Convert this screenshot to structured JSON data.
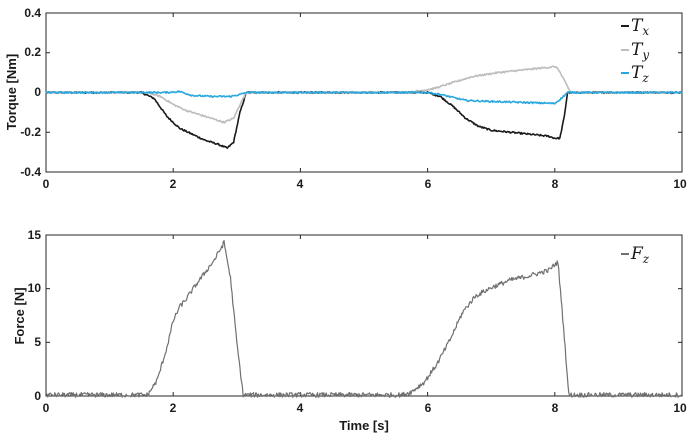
{
  "chart_data": [
    {
      "type": "line",
      "ylabel": "Torque [Nm]",
      "xlabel": "",
      "xlim": [
        0,
        10
      ],
      "ylim": [
        -0.4,
        0.4
      ],
      "xticks": [
        "0",
        "2",
        "4",
        "6",
        "8",
        "10"
      ],
      "yticks": [
        "-0.4",
        "-0.2",
        "0",
        "0.2",
        "0.4"
      ],
      "grid": false,
      "legend_position": "top-right",
      "series": [
        {
          "name": "Tx",
          "legend_main": "T",
          "legend_sub": "x",
          "color": "#1a1a1a",
          "x": [
            0,
            1.5,
            1.7,
            1.9,
            2.1,
            2.3,
            2.5,
            2.7,
            2.85,
            2.95,
            3.05,
            3.15,
            6.0,
            6.2,
            6.4,
            6.6,
            6.8,
            7.0,
            7.3,
            7.6,
            7.9,
            8.0,
            8.08,
            8.15,
            8.2,
            10
          ],
          "y": [
            0,
            0,
            -0.03,
            -0.12,
            -0.18,
            -0.21,
            -0.24,
            -0.26,
            -0.28,
            -0.25,
            -0.1,
            0,
            0,
            -0.02,
            -0.07,
            -0.13,
            -0.17,
            -0.19,
            -0.2,
            -0.21,
            -0.22,
            -0.23,
            -0.23,
            -0.12,
            0,
            0
          ]
        },
        {
          "name": "Ty",
          "legend_main": "T",
          "legend_sub": "y",
          "color": "#bdbdbd",
          "x": [
            0,
            1.6,
            1.8,
            2.0,
            2.2,
            2.4,
            2.6,
            2.8,
            2.95,
            3.05,
            3.15,
            5.7,
            5.9,
            6.1,
            6.3,
            6.5,
            6.7,
            6.9,
            7.1,
            7.4,
            7.7,
            8.0,
            8.05,
            8.15,
            8.25,
            10
          ],
          "y": [
            0,
            0,
            -0.02,
            -0.06,
            -0.09,
            -0.11,
            -0.13,
            -0.15,
            -0.13,
            -0.06,
            0,
            0,
            0.01,
            0.02,
            0.04,
            0.06,
            0.08,
            0.09,
            0.1,
            0.11,
            0.12,
            0.13,
            0.12,
            0.06,
            0,
            0
          ]
        },
        {
          "name": "Tz",
          "legend_main": "T",
          "legend_sub": "z",
          "color": "#2aa8de",
          "x": [
            0,
            1.9,
            2.1,
            2.3,
            2.6,
            2.9,
            3.05,
            3.15,
            6.0,
            6.2,
            6.4,
            6.6,
            7.0,
            7.5,
            8.0,
            8.1,
            8.2,
            10
          ],
          "y": [
            0,
            0,
            0.005,
            -0.015,
            -0.02,
            -0.02,
            -0.01,
            0,
            0,
            -0.01,
            -0.025,
            -0.04,
            -0.045,
            -0.05,
            -0.055,
            -0.03,
            0,
            0
          ]
        }
      ]
    },
    {
      "type": "line",
      "ylabel": "Force [N]",
      "xlabel": "Time [s]",
      "xlim": [
        0,
        10
      ],
      "ylim": [
        0,
        15
      ],
      "xticks": [
        "0",
        "2",
        "4",
        "6",
        "8",
        "10"
      ],
      "yticks": [
        "0",
        "5",
        "10",
        "15"
      ],
      "grid": false,
      "legend_position": "top-right",
      "series": [
        {
          "name": "Fz",
          "legend_main": "F",
          "legend_sub": "z",
          "color": "#707070",
          "x": [
            0,
            1.6,
            1.75,
            1.9,
            2.0,
            2.1,
            2.2,
            2.35,
            2.5,
            2.65,
            2.8,
            2.9,
            3.0,
            3.1,
            5.6,
            5.75,
            5.95,
            6.15,
            6.35,
            6.55,
            6.75,
            7.0,
            7.3,
            7.6,
            7.9,
            8.05,
            8.15,
            8.22,
            10
          ],
          "y": [
            0.1,
            0.1,
            1.5,
            4.5,
            7.0,
            8.3,
            9.0,
            10.3,
            11.5,
            12.7,
            14.3,
            11.0,
            5.0,
            0.1,
            0.1,
            0.4,
            1.3,
            3.0,
            5.2,
            7.8,
            9.3,
            10.1,
            10.8,
            11.2,
            11.7,
            12.5,
            5.5,
            0.1,
            0.1
          ]
        }
      ]
    }
  ]
}
